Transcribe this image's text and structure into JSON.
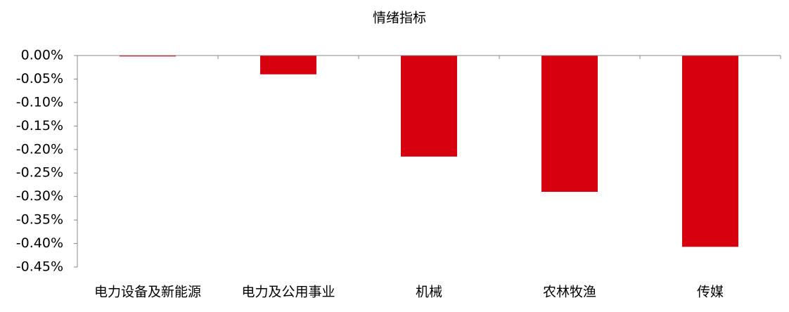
{
  "chart_data": {
    "type": "bar",
    "title": "情绪指标",
    "categories": [
      "电力设备及新能源",
      "电力及公用事业",
      "机械",
      "农林牧渔",
      "传媒"
    ],
    "values": [
      -0.002,
      -0.04,
      -0.215,
      -0.29,
      -0.407
    ],
    "color": "#d7000f",
    "ylim": [
      -0.45,
      0
    ],
    "yticks": [
      {
        "value": 0,
        "label": "0.00%"
      },
      {
        "value": -0.05,
        "label": "-0.05%"
      },
      {
        "value": -0.1,
        "label": "-0.10%"
      },
      {
        "value": -0.15,
        "label": "-0.15%"
      },
      {
        "value": -0.2,
        "label": "-0.20%"
      },
      {
        "value": -0.25,
        "label": "-0.25%"
      },
      {
        "value": -0.3,
        "label": "-0.30%"
      },
      {
        "value": -0.35,
        "label": "-0.35%"
      },
      {
        "value": -0.4,
        "label": "-0.40%"
      },
      {
        "value": -0.45,
        "label": "-0.45%"
      }
    ],
    "grid": false
  }
}
